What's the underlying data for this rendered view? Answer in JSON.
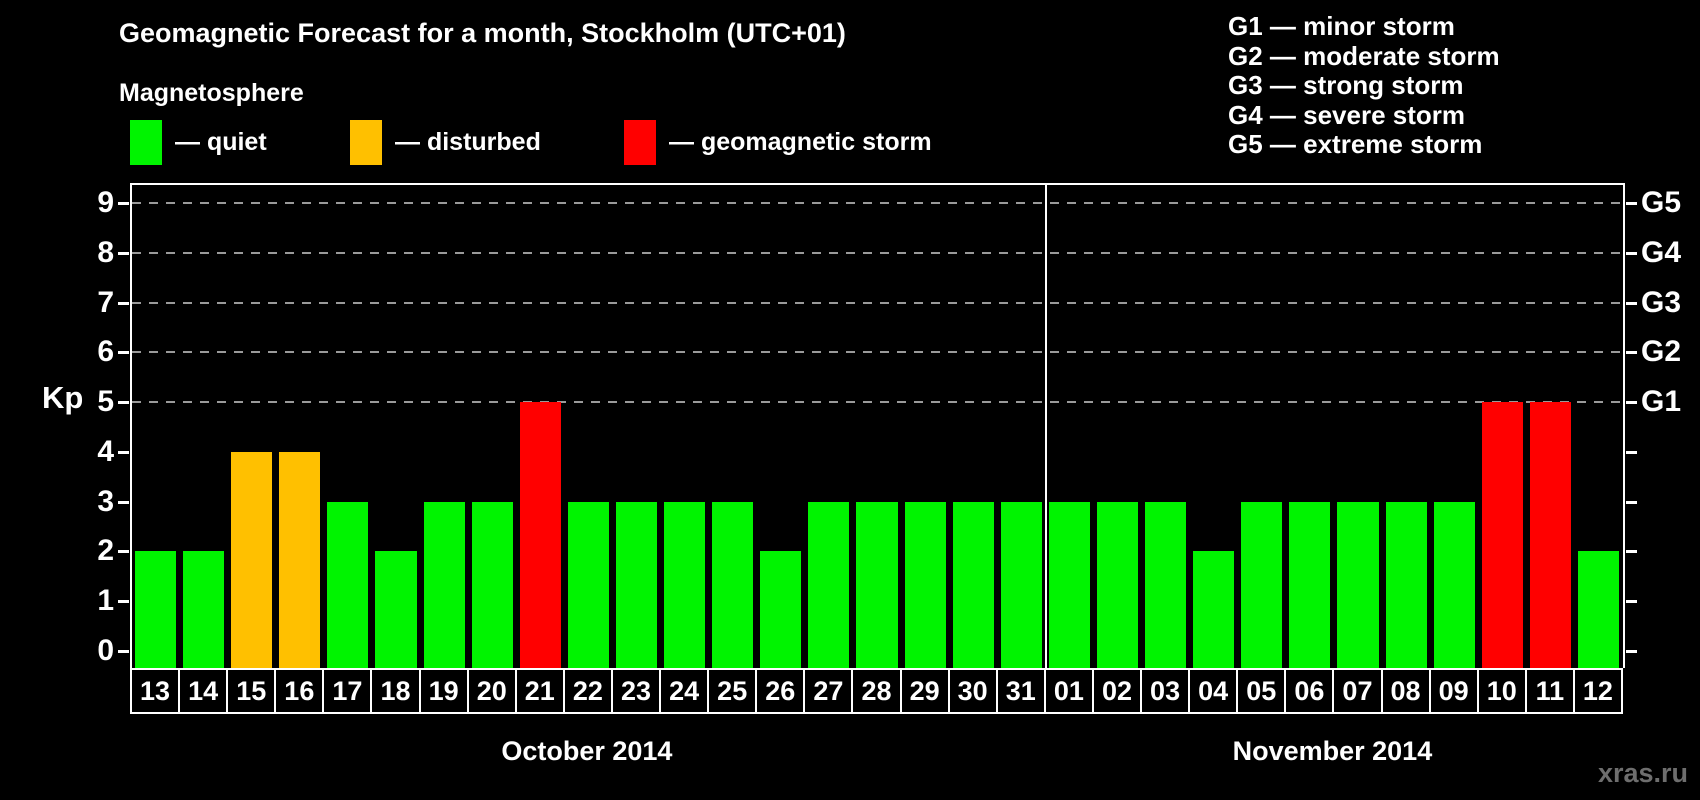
{
  "header": {
    "title": "Geomagnetic Forecast for a month, Stockholm (UTC+01)",
    "subtitle": "Magnetosphere"
  },
  "legend": {
    "items": [
      {
        "key": "quiet",
        "label": "— quiet",
        "color": "#00f400"
      },
      {
        "key": "disturbed",
        "label": "— disturbed",
        "color": "#ffc000"
      },
      {
        "key": "storm",
        "label": "— geomagnetic storm",
        "color": "#ff0000"
      }
    ]
  },
  "g_legend": {
    "lines": [
      "G1 — minor storm",
      "G2 — moderate storm",
      "G3 — strong storm",
      "G4 — severe storm",
      "G5 — extreme storm"
    ]
  },
  "watermark": "xras.ru",
  "chart_data": {
    "type": "bar",
    "title": "Geomagnetic Forecast for a month, Stockholm (UTC+01)",
    "ylabel": "Kp",
    "ylim": [
      0,
      9
    ],
    "yticks": [
      0,
      1,
      2,
      3,
      4,
      5,
      6,
      7,
      8,
      9
    ],
    "gridlines_kp": [
      5,
      6,
      7,
      8,
      9
    ],
    "grid": "dashed horizontal at storm levels only",
    "right_axis": [
      {
        "kp": 5,
        "label": "G1"
      },
      {
        "kp": 6,
        "label": "G2"
      },
      {
        "kp": 7,
        "label": "G3"
      },
      {
        "kp": 8,
        "label": "G4"
      },
      {
        "kp": 9,
        "label": "G5"
      }
    ],
    "colors": {
      "quiet": "#00f400",
      "disturbed": "#ffc000",
      "storm": "#ff0000"
    },
    "color_rule": {
      "disturbed_at_kp": 4,
      "storm_at_kp_or_above": 5
    },
    "months": [
      {
        "label": "October 2014",
        "days": [
          "13",
          "14",
          "15",
          "16",
          "17",
          "18",
          "19",
          "20",
          "21",
          "22",
          "23",
          "24",
          "25",
          "26",
          "27",
          "28",
          "29",
          "30",
          "31"
        ],
        "kp": [
          2,
          2,
          4,
          4,
          3,
          2,
          3,
          3,
          5,
          3,
          3,
          3,
          3,
          2,
          3,
          3,
          3,
          3,
          3
        ]
      },
      {
        "label": "November 2014",
        "days": [
          "01",
          "02",
          "03",
          "04",
          "05",
          "06",
          "07",
          "08",
          "09",
          "10",
          "11",
          "12"
        ],
        "kp": [
          3,
          3,
          3,
          2,
          3,
          3,
          3,
          3,
          3,
          5,
          5,
          2
        ]
      }
    ]
  }
}
